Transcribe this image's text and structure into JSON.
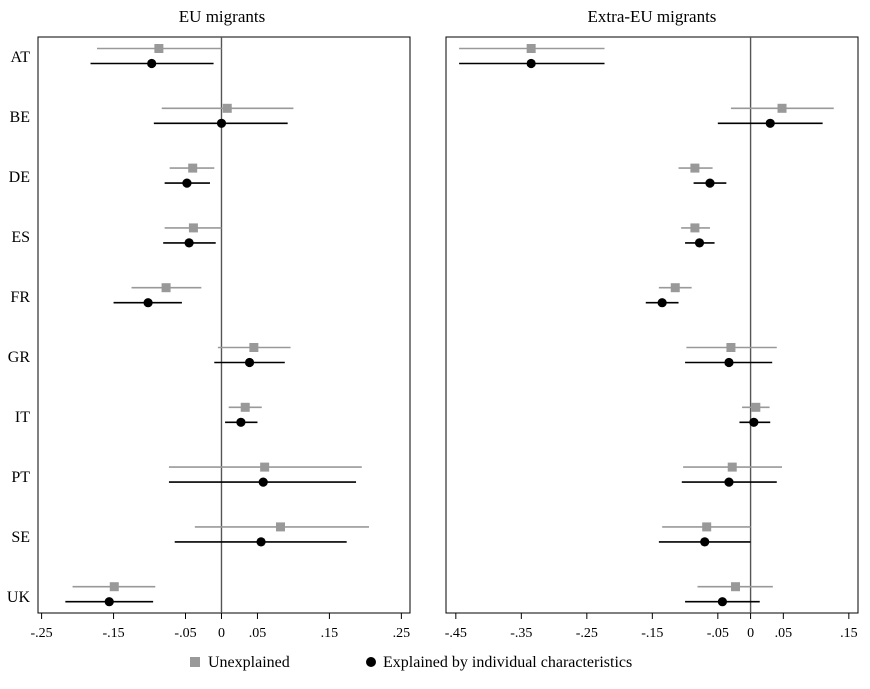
{
  "colors": {
    "unexplained": "#999999",
    "explained": "#000000",
    "zero_line": "#555555"
  },
  "legend": {
    "unexplained_label": "Unexplained",
    "explained_label": "Explained by individual characteristics"
  },
  "chart_data": [
    {
      "type": "scatter",
      "title": "EU migrants",
      "xlim": [
        -0.255,
        0.262
      ],
      "xticks": [
        -0.25,
        -0.15,
        -0.05,
        0,
        0.05,
        0.15,
        0.25
      ],
      "xtick_labels": [
        "-.25",
        "-.15",
        "-.05",
        "0",
        ".05",
        ".15",
        ".25"
      ],
      "categories": [
        "AT",
        "BE",
        "DE",
        "ES",
        "FR",
        "GR",
        "IT",
        "PT",
        "SE",
        "UK"
      ],
      "series": [
        {
          "name": "Unexplained",
          "points": [
            {
              "country": "AT",
              "value": -0.087,
              "ci": [
                -0.173,
                0.0
              ]
            },
            {
              "country": "BE",
              "value": 0.008,
              "ci": [
                -0.083,
                0.1
              ]
            },
            {
              "country": "DE",
              "value": -0.04,
              "ci": [
                -0.072,
                -0.01
              ]
            },
            {
              "country": "ES",
              "value": -0.039,
              "ci": [
                -0.079,
                0.0
              ]
            },
            {
              "country": "FR",
              "value": -0.077,
              "ci": [
                -0.125,
                -0.028
              ]
            },
            {
              "country": "GR",
              "value": 0.045,
              "ci": [
                -0.005,
                0.096
              ]
            },
            {
              "country": "IT",
              "value": 0.033,
              "ci": [
                0.01,
                0.056
              ]
            },
            {
              "country": "PT",
              "value": 0.06,
              "ci": [
                -0.073,
                0.195
              ]
            },
            {
              "country": "SE",
              "value": 0.082,
              "ci": [
                -0.037,
                0.205
              ]
            },
            {
              "country": "UK",
              "value": -0.149,
              "ci": [
                -0.207,
                -0.092
              ]
            }
          ]
        },
        {
          "name": "Explained by individual characteristics",
          "points": [
            {
              "country": "AT",
              "value": -0.097,
              "ci": [
                -0.182,
                -0.011
              ]
            },
            {
              "country": "BE",
              "value": 0.0,
              "ci": [
                -0.094,
                0.092
              ]
            },
            {
              "country": "DE",
              "value": -0.048,
              "ci": [
                -0.079,
                -0.016
              ]
            },
            {
              "country": "ES",
              "value": -0.045,
              "ci": [
                -0.081,
                -0.008
              ]
            },
            {
              "country": "FR",
              "value": -0.102,
              "ci": [
                -0.15,
                -0.055
              ]
            },
            {
              "country": "GR",
              "value": 0.039,
              "ci": [
                -0.01,
                0.088
              ]
            },
            {
              "country": "IT",
              "value": 0.027,
              "ci": [
                0.005,
                0.05
              ]
            },
            {
              "country": "PT",
              "value": 0.058,
              "ci": [
                -0.073,
                0.187
              ]
            },
            {
              "country": "SE",
              "value": 0.055,
              "ci": [
                -0.065,
                0.174
              ]
            },
            {
              "country": "UK",
              "value": -0.156,
              "ci": [
                -0.217,
                -0.095
              ]
            }
          ]
        }
      ]
    },
    {
      "type": "scatter",
      "title": "Extra-EU migrants",
      "xlim": [
        -0.465,
        0.164
      ],
      "xticks": [
        -0.45,
        -0.35,
        -0.25,
        -0.15,
        -0.05,
        0,
        0.05,
        0.15
      ],
      "xtick_labels": [
        "-.45",
        "-.35",
        "-.25",
        "-.15",
        "-.05",
        "0",
        ".05",
        ".15"
      ],
      "categories": [
        "AT",
        "BE",
        "DE",
        "ES",
        "FR",
        "GR",
        "IT",
        "PT",
        "SE",
        "UK"
      ],
      "series": [
        {
          "name": "Unexplained",
          "points": [
            {
              "country": "AT",
              "value": -0.335,
              "ci": [
                -0.445,
                -0.223
              ]
            },
            {
              "country": "BE",
              "value": 0.048,
              "ci": [
                -0.03,
                0.127
              ]
            },
            {
              "country": "DE",
              "value": -0.085,
              "ci": [
                -0.11,
                -0.058
              ]
            },
            {
              "country": "ES",
              "value": -0.085,
              "ci": [
                -0.106,
                -0.062
              ]
            },
            {
              "country": "FR",
              "value": -0.115,
              "ci": [
                -0.14,
                -0.09
              ]
            },
            {
              "country": "GR",
              "value": -0.03,
              "ci": [
                -0.098,
                0.04
              ]
            },
            {
              "country": "IT",
              "value": 0.008,
              "ci": [
                -0.013,
                0.029
              ]
            },
            {
              "country": "PT",
              "value": -0.028,
              "ci": [
                -0.103,
                0.048
              ]
            },
            {
              "country": "SE",
              "value": -0.067,
              "ci": [
                -0.135,
                0.0
              ]
            },
            {
              "country": "UK",
              "value": -0.023,
              "ci": [
                -0.081,
                0.034
              ]
            }
          ]
        },
        {
          "name": "Explained by individual characteristics",
          "points": [
            {
              "country": "AT",
              "value": -0.335,
              "ci": [
                -0.445,
                -0.223
              ]
            },
            {
              "country": "BE",
              "value": 0.03,
              "ci": [
                -0.05,
                0.11
              ]
            },
            {
              "country": "DE",
              "value": -0.062,
              "ci": [
                -0.087,
                -0.037
              ]
            },
            {
              "country": "ES",
              "value": -0.078,
              "ci": [
                -0.1,
                -0.055
              ]
            },
            {
              "country": "FR",
              "value": -0.135,
              "ci": [
                -0.16,
                -0.11
              ]
            },
            {
              "country": "GR",
              "value": -0.033,
              "ci": [
                -0.1,
                0.033
              ]
            },
            {
              "country": "IT",
              "value": 0.005,
              "ci": [
                -0.017,
                0.03
              ]
            },
            {
              "country": "PT",
              "value": -0.033,
              "ci": [
                -0.105,
                0.04
              ]
            },
            {
              "country": "SE",
              "value": -0.07,
              "ci": [
                -0.14,
                0.0
              ]
            },
            {
              "country": "UK",
              "value": -0.043,
              "ci": [
                -0.1,
                0.014
              ]
            }
          ]
        }
      ]
    }
  ]
}
